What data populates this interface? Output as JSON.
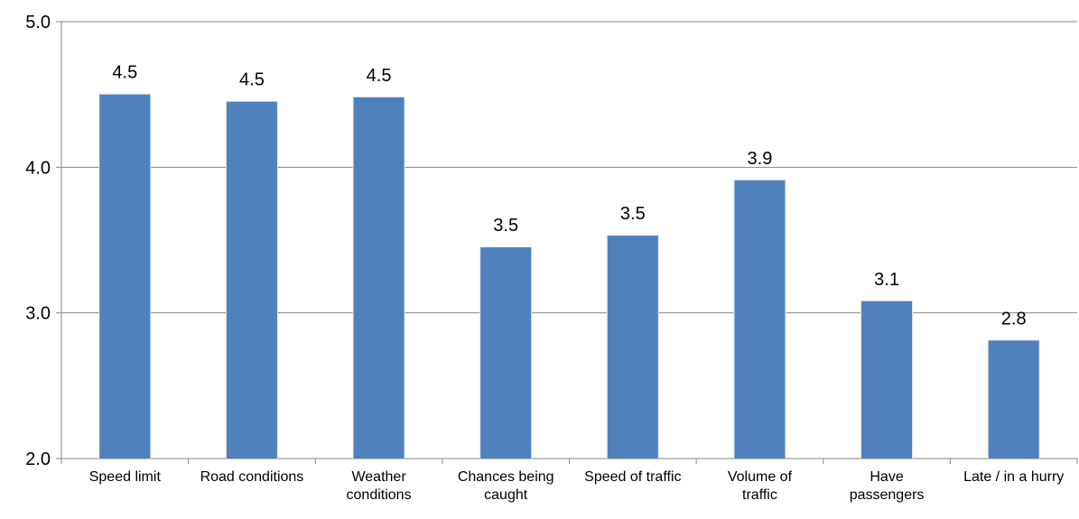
{
  "chart_data": {
    "type": "bar",
    "title": "",
    "xlabel": "",
    "ylabel": "",
    "ylim": [
      2.0,
      5.0
    ],
    "yticks": [
      "2.0",
      "3.0",
      "4.0",
      "5.0"
    ],
    "grid": true,
    "legend": "none",
    "bar_color": "#4F81BD",
    "categories": [
      [
        "Speed limit"
      ],
      [
        "Road conditions"
      ],
      [
        "Weather",
        "conditions"
      ],
      [
        "Chances being",
        "caught"
      ],
      [
        "Speed of traffic"
      ],
      [
        "Volume of",
        "traffic"
      ],
      [
        "Have",
        "passengers"
      ],
      [
        "Late / in a hurry"
      ]
    ],
    "values": [
      4.5,
      4.45,
      4.48,
      3.45,
      3.53,
      3.91,
      3.08,
      2.81
    ],
    "data_labels": [
      "4.5",
      "4.5",
      "4.5",
      "3.5",
      "3.5",
      "3.9",
      "3.1",
      "2.8"
    ]
  }
}
